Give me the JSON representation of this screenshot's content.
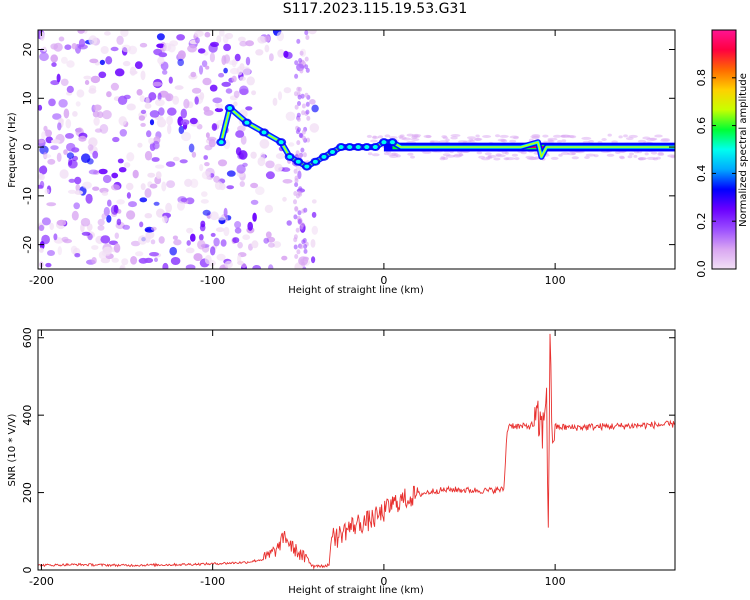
{
  "title": "S117.2023.115.19.53.G31",
  "colors": {
    "snr_line": "#e8302e",
    "spectrum_line": "#e8302e",
    "colormap": [
      "#f2e0f5",
      "#d9a6f2",
      "#9b4dff",
      "#6a00ff",
      "#0000ff",
      "#00aaff",
      "#00ffee",
      "#00ff33",
      "#c8ff00",
      "#ffd000",
      "#ff6a00",
      "#ff0040",
      "#ff1493"
    ]
  },
  "chart_data": [
    {
      "type": "heatmap",
      "title": "S117.2023.115.19.53.G31",
      "xlabel": "Height of straight line (km)",
      "ylabel": "Frequency (Hz)",
      "xlim": [
        -202,
        170
      ],
      "ylim": [
        -25,
        24
      ],
      "xticks": [
        -200,
        -100,
        0,
        100
      ],
      "yticks": [
        -20,
        -10,
        0,
        10,
        20
      ],
      "grid": false,
      "colorbar": {
        "label": "Normalized spectral amplitude",
        "range": [
          0.0,
          1.0
        ],
        "ticks": [
          "0.0",
          "0.2",
          "0.4",
          "0.6",
          "0.8"
        ]
      },
      "dominant_frequency_track": {
        "x": [
          -95,
          -90,
          -80,
          -70,
          -60,
          -55,
          -50,
          -45,
          -40,
          -35,
          -30,
          -25,
          -20,
          -15,
          -10,
          -5,
          0,
          5,
          10,
          20,
          40,
          60,
          80,
          90,
          92,
          95,
          100,
          120,
          140,
          170
        ],
        "y": [
          1,
          8,
          5,
          3,
          1,
          -2,
          -3,
          -4,
          -3,
          -2,
          -1,
          0,
          0,
          0,
          0,
          0,
          1,
          1,
          0,
          0,
          0,
          0,
          0,
          1,
          -2,
          0,
          0,
          0,
          0,
          0
        ]
      }
    },
    {
      "type": "line",
      "xlabel": "Height of straight line (km)",
      "ylabel": "SNR (10 * V/V)",
      "xlim": [
        -202,
        170
      ],
      "ylim": [
        0,
        620
      ],
      "xticks": [
        -200,
        -100,
        0,
        100
      ],
      "yticks": [
        0,
        200,
        400,
        600
      ],
      "grid": false,
      "series": [
        {
          "x": [
            -202,
            -180,
            -150,
            -120,
            -100,
            -80,
            -70,
            -62,
            -58,
            -55,
            -50,
            -45,
            -40,
            -35,
            -32,
            -30,
            -28,
            -25,
            -20,
            -15,
            -10,
            -5,
            0,
            5,
            10,
            20,
            30,
            40,
            50,
            60,
            70,
            72,
            73,
            80,
            85,
            90,
            93,
            95,
            96,
            97,
            98,
            100,
            110,
            120,
            140,
            160,
            170
          ],
          "y": [
            12,
            14,
            12,
            14,
            16,
            20,
            28,
            55,
            90,
            65,
            45,
            25,
            12,
            10,
            14,
            110,
            80,
            95,
            110,
            120,
            125,
            135,
            150,
            170,
            180,
            195,
            205,
            208,
            206,
            205,
            208,
            360,
            375,
            370,
            372,
            380,
            360,
            480,
            100,
            600,
            360,
            370,
            368,
            370,
            372,
            375,
            376
          ]
        }
      ]
    }
  ]
}
